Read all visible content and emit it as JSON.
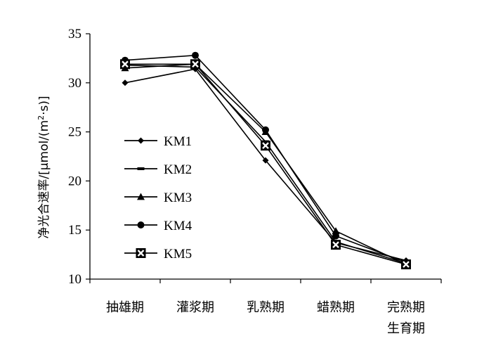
{
  "chart_data": {
    "type": "line",
    "categories": [
      "抽雄期",
      "灌浆期",
      "乳熟期",
      "蜡熟期",
      "完熟期"
    ],
    "category_second_line": [
      "",
      "",
      "",
      "",
      "生育期"
    ],
    "ylabel": "净光合速率/[μmol/(m²·s)]",
    "ylabel_main": "净光合速率/[μmol/(m",
    "ylabel_sup": "2",
    "ylabel_tail": "·s)]",
    "ylim": [
      10,
      35
    ],
    "yticks": [
      10,
      15,
      20,
      25,
      30,
      35
    ],
    "grid": false,
    "legend_position": "left-inside",
    "series": [
      {
        "name": "KM1",
        "marker": "diamond",
        "values": [
          30.0,
          31.4,
          22.1,
          13.7,
          11.9
        ]
      },
      {
        "name": "KM2",
        "marker": "dash",
        "values": [
          31.8,
          31.6,
          24.0,
          13.8,
          11.6
        ]
      },
      {
        "name": "KM3",
        "marker": "triangle",
        "values": [
          31.5,
          31.9,
          25.0,
          14.9,
          11.5
        ]
      },
      {
        "name": "KM4",
        "marker": "circle",
        "values": [
          32.3,
          32.8,
          25.2,
          14.4,
          11.7
        ]
      },
      {
        "name": "KM5",
        "marker": "square-x",
        "values": [
          31.9,
          31.9,
          23.6,
          13.5,
          11.5
        ]
      }
    ]
  }
}
